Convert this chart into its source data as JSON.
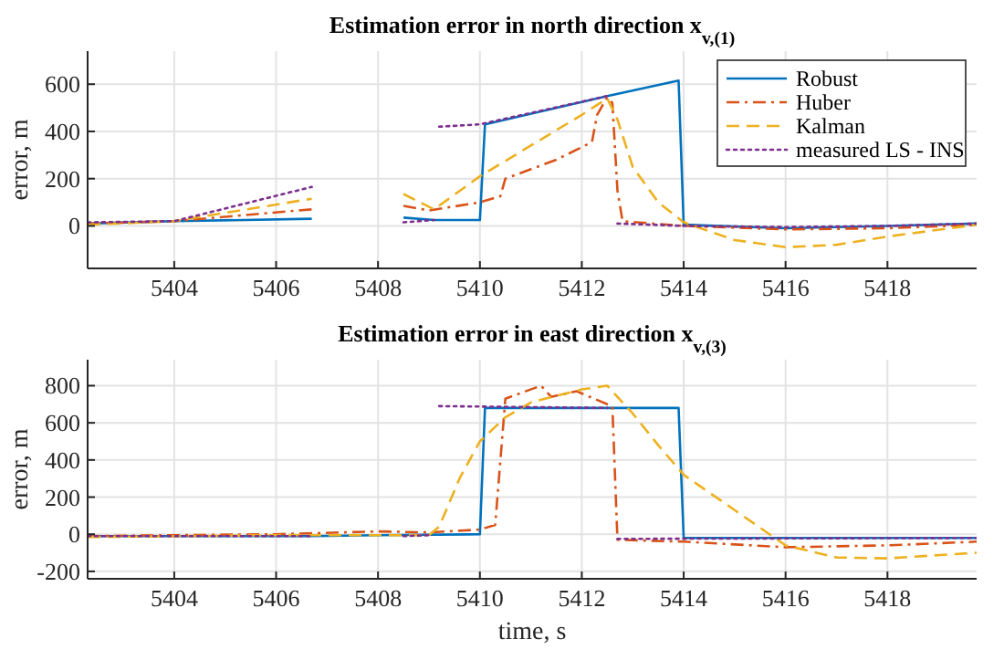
{
  "chart_data": [
    {
      "type": "line",
      "title": "Estimation error in north direction x$_{v,(1)}$",
      "ylabel": "error, m",
      "xlim": [
        5402.3,
        5419.75
      ],
      "xticks": [
        5404,
        5406,
        5408,
        5410,
        5412,
        5414,
        5416,
        5418
      ],
      "ylim": [
        -180,
        740
      ],
      "yticks": [
        0,
        200,
        400,
        600
      ],
      "grid": true,
      "legend": "top right",
      "series": [
        {
          "name": "Robust",
          "color": "#0072bd",
          "line_style": "solid",
          "x": [
            5402.3,
            5404,
            5406.7,
            5407.6,
            5408.5,
            5409.1,
            5410,
            5410.1,
            5412.5,
            5413.9,
            5414,
            5416,
            5418,
            5419.75
          ],
          "values": [
            10,
            20,
            30,
            null,
            35,
            25,
            25,
            430,
            550,
            615,
            5,
            -10,
            0,
            10
          ]
        },
        {
          "name": "Huber",
          "color": "#d95319",
          "line_style": "dashdot",
          "x": [
            5402.3,
            5404,
            5406.7,
            5407.6,
            5408.5,
            5409,
            5410,
            5410.4,
            5410.5,
            5411.5,
            5412.2,
            5412.3,
            5412.5,
            5412.6,
            5412.7,
            5412.8,
            5414,
            5416,
            5418,
            5419.75
          ],
          "values": [
            10,
            20,
            70,
            null,
            85,
            65,
            100,
            125,
            200,
            280,
            355,
            470,
            545,
            520,
            150,
            20,
            0,
            -15,
            -10,
            5
          ]
        },
        {
          "name": "Kalman",
          "color": "#edb120",
          "line_style": "dashed",
          "x": [
            5402.3,
            5404,
            5406.7,
            5407.6,
            5408.5,
            5409.1,
            5410,
            5411,
            5412,
            5412.5,
            5412.7,
            5413,
            5413.5,
            5414,
            5415,
            5416,
            5417,
            5418,
            5419.75
          ],
          "values": [
            5,
            20,
            115,
            null,
            135,
            70,
            210,
            340,
            470,
            540,
            450,
            250,
            100,
            15,
            -60,
            -90,
            -80,
            -45,
            5
          ]
        },
        {
          "name": "measured LS - INS",
          "color": "#7e2f8e",
          "line_style": "dotted",
          "x": [
            5402.3,
            5404,
            5406.7,
            5407.6,
            5408.5,
            5409.1,
            5409.15,
            5409.2,
            5410,
            5412.5,
            5412.6,
            5412.7,
            5414,
            5416,
            5418,
            5419.75
          ],
          "values": [
            15,
            20,
            165,
            null,
            15,
            25,
            null,
            420,
            430,
            550,
            null,
            10,
            0,
            -5,
            0,
            10
          ]
        }
      ]
    },
    {
      "type": "line",
      "title": "Estimation error in east direction x$_{v,(3)}$",
      "xlabel": "time, s",
      "ylabel": "error, m",
      "xlim": [
        5402.3,
        5419.75
      ],
      "xticks": [
        5404,
        5406,
        5408,
        5410,
        5412,
        5414,
        5416,
        5418
      ],
      "ylim": [
        -240,
        940
      ],
      "yticks": [
        -200,
        0,
        200,
        400,
        600,
        800
      ],
      "grid": true,
      "series": [
        {
          "color": "#0072bd",
          "line_style": "solid",
          "x": [
            5402.3,
            5406.7,
            5408,
            5410,
            5410.1,
            5413.9,
            5414,
            5419.75
          ],
          "values": [
            -10,
            -10,
            -5,
            0,
            680,
            680,
            -20,
            -20
          ]
        },
        {
          "color": "#d95319",
          "line_style": "dashdot",
          "x": [
            5402.3,
            5406,
            5408,
            5409,
            5410,
            5410.3,
            5410.5,
            5411.2,
            5411.4,
            5411.9,
            5412.5,
            5412.6,
            5412.7,
            5414,
            5416,
            5418,
            5419.75
          ],
          "values": [
            -10,
            0,
            15,
            10,
            25,
            50,
            730,
            800,
            740,
            770,
            700,
            690,
            -30,
            -40,
            -70,
            -60,
            -40
          ]
        },
        {
          "color": "#edb120",
          "line_style": "dashed",
          "x": [
            5402.3,
            5406,
            5409,
            5409.2,
            5409.6,
            5410,
            5410.5,
            5411,
            5412,
            5412.5,
            5413,
            5413.5,
            5414,
            5415,
            5416,
            5417,
            5418,
            5419.75
          ],
          "values": [
            -15,
            -5,
            -5,
            40,
            300,
            500,
            630,
            710,
            780,
            800,
            650,
            480,
            320,
            130,
            -60,
            -125,
            -130,
            -100
          ]
        },
        {
          "color": "#7e2f8e",
          "line_style": "dotted",
          "x": [
            5402.3,
            5406.7,
            5407.6,
            5408.5,
            5409,
            5409.1,
            5409.2,
            5412.5,
            5412.6,
            5412.7,
            5419.75
          ],
          "values": [
            -10,
            -10,
            null,
            -10,
            -5,
            null,
            690,
            680,
            null,
            -25,
            -20
          ]
        }
      ]
    }
  ]
}
